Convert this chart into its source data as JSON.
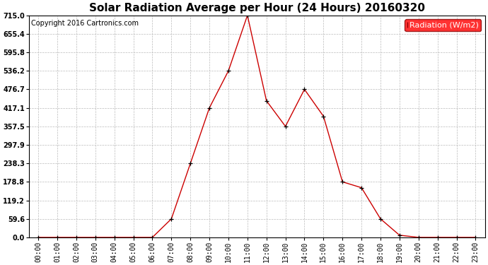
{
  "title": "Solar Radiation Average per Hour (24 Hours) 20160320",
  "copyright": "Copyright 2016 Cartronics.com",
  "legend_label": "Radiation (W/m2)",
  "hours": [
    "00:00",
    "01:00",
    "02:00",
    "03:00",
    "04:00",
    "05:00",
    "06:00",
    "07:00",
    "08:00",
    "09:00",
    "10:00",
    "11:00",
    "12:00",
    "13:00",
    "14:00",
    "15:00",
    "16:00",
    "17:00",
    "18:00",
    "19:00",
    "20:00",
    "21:00",
    "22:00",
    "23:00"
  ],
  "values": [
    0,
    0,
    0,
    0,
    0,
    0,
    0,
    59.6,
    238.3,
    417.1,
    536.2,
    715.0,
    440.0,
    357.5,
    476.7,
    390.0,
    178.8,
    160.0,
    59.6,
    7.0,
    0,
    0,
    0,
    0
  ],
  "line_color": "#cc0000",
  "marker_color": "#000000",
  "bg_color": "#ffffff",
  "grid_color": "#bbbbbb",
  "ylim_min": 0.0,
  "ylim_max": 715.0,
  "yticks": [
    0.0,
    59.6,
    119.2,
    178.8,
    238.3,
    297.9,
    357.5,
    417.1,
    476.7,
    536.2,
    595.8,
    655.4,
    715.0
  ],
  "title_fontsize": 11,
  "copyright_fontsize": 7,
  "legend_fontsize": 8,
  "tick_fontsize": 7,
  "fig_width": 6.9,
  "fig_height": 3.75,
  "dpi": 100
}
